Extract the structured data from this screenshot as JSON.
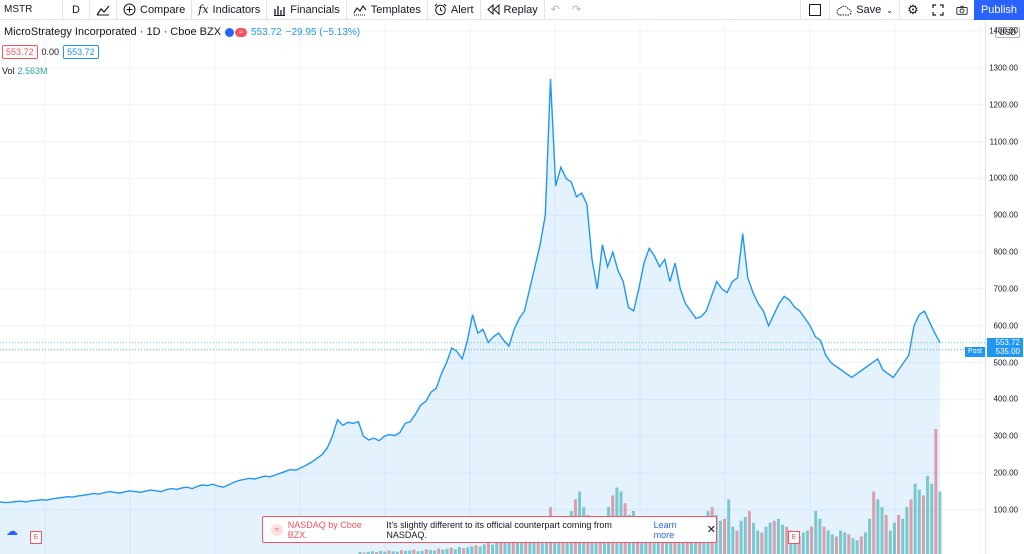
{
  "toolbar": {
    "symbol": "MSTR",
    "interval": "D",
    "compare": "Compare",
    "indicators": "Indicators",
    "financials": "Financials",
    "templates": "Templates",
    "alert": "Alert",
    "replay": "Replay",
    "save": "Save",
    "publish": "Publish"
  },
  "legend": {
    "title": "MicroStrategy Incorporated · 1D · Cboe BZX",
    "last": "553.72",
    "change": "−29.95 (−5.13%)",
    "bid": "553.72",
    "spread": "0.00",
    "ask": "553.72",
    "vol_label": "Vol",
    "vol_value": "2.563M"
  },
  "axis": {
    "currency": "USD",
    "ticks": [
      "1400.00",
      "1300.00",
      "1200.00",
      "1100.00",
      "1000.00",
      "900.00",
      "800.00",
      "700.00",
      "600.00",
      "500.00",
      "400.00",
      "300.00",
      "200.00",
      "100.00"
    ],
    "last_price_tag": "553.72",
    "post_price_tag": "535.00",
    "post_label": "Post"
  },
  "notice": {
    "source": "NASDAQ by Cboe BZX.",
    "message": "It's slightly different to its official counterpart coming from NASDAQ.",
    "link": "Learn more"
  },
  "events": {
    "earnings": "E"
  },
  "colors": {
    "line": "#2196f3",
    "up": "#26a69a",
    "down": "#ef5350",
    "accent": "#2962ff"
  },
  "chart_data": {
    "type": "area",
    "ylim": [
      0,
      1400
    ],
    "series": [
      {
        "values": [
          122,
          120,
          121,
          123,
          124,
          122,
          125,
          126,
          128,
          127,
          130,
          132,
          134,
          136,
          135,
          138,
          140,
          142,
          145,
          143,
          147,
          150,
          148,
          146,
          149,
          152,
          150,
          148,
          151,
          154,
          152,
          150,
          155,
          158,
          156,
          160,
          162,
          158,
          164,
          168,
          166,
          170,
          165,
          162,
          168,
          175,
          180,
          183,
          186,
          184,
          188,
          192,
          190,
          195,
          200,
          205,
          210,
          208,
          215,
          222,
          230,
          240,
          250,
          268,
          300,
          345,
          330,
          338,
          335,
          340,
          300,
          290,
          295,
          288,
          300,
          305,
          302,
          310,
          335,
          340,
          360,
          385,
          395,
          420,
          430,
          470,
          500,
          540,
          530,
          510,
          560,
          630,
          580,
          590,
          555,
          570,
          580,
          560,
          545,
          590,
          620,
          640,
          700,
          760,
          820,
          900,
          1270,
          980,
          1030,
          1000,
          990,
          950,
          960,
          930,
          780,
          700,
          820,
          760,
          800,
          750,
          720,
          650,
          640,
          700,
          770,
          810,
          790,
          760,
          780,
          720,
          770,
          700,
          660,
          640,
          620,
          625,
          640,
          680,
          720,
          700,
          690,
          720,
          730,
          850,
          730,
          690,
          660,
          640,
          600,
          630,
          660,
          680,
          670,
          650,
          640,
          620,
          600,
          570,
          560,
          520,
          500,
          490,
          480,
          470,
          460,
          470,
          480,
          490,
          500,
          510,
          480,
          470,
          460,
          480,
          500,
          520,
          600,
          630,
          640,
          610,
          580,
          553.72
        ]
      },
      {
        "name": "Vol",
        "values": [
          5,
          4,
          6,
          7,
          5,
          8,
          6,
          9,
          7,
          6,
          10,
          8,
          9,
          11,
          7,
          8,
          12,
          10,
          9,
          14,
          11,
          13,
          16,
          12,
          18,
          15,
          17,
          20,
          22,
          19,
          25,
          28,
          24,
          30,
          35,
          40,
          60,
          85,
          70,
          45,
          50,
          40,
          55,
          60,
          75,
          90,
          120,
          80,
          70,
          60,
          90,
          110,
          140,
          160,
          120,
          100,
          80,
          70,
          90,
          95,
          120,
          150,
          170,
          160,
          130,
          100,
          110,
          90,
          85,
          70,
          65,
          90,
          80,
          70,
          60,
          75,
          55,
          50,
          45,
          60,
          70,
          80,
          75,
          90,
          110,
          120,
          100,
          85,
          90,
          140,
          70,
          60,
          85,
          95,
          110,
          80,
          60,
          55,
          70,
          80,
          85,
          90,
          75,
          70,
          60,
          50,
          45,
          55,
          60,
          70,
          110,
          90,
          70,
          60,
          50,
          45,
          60,
          55,
          50,
          40,
          35,
          45,
          55,
          90,
          160,
          140,
          120,
          100,
          60,
          80,
          100,
          90,
          120,
          140,
          180,
          165,
          150,
          200,
          180,
          320,
          160
        ]
      }
    ]
  }
}
